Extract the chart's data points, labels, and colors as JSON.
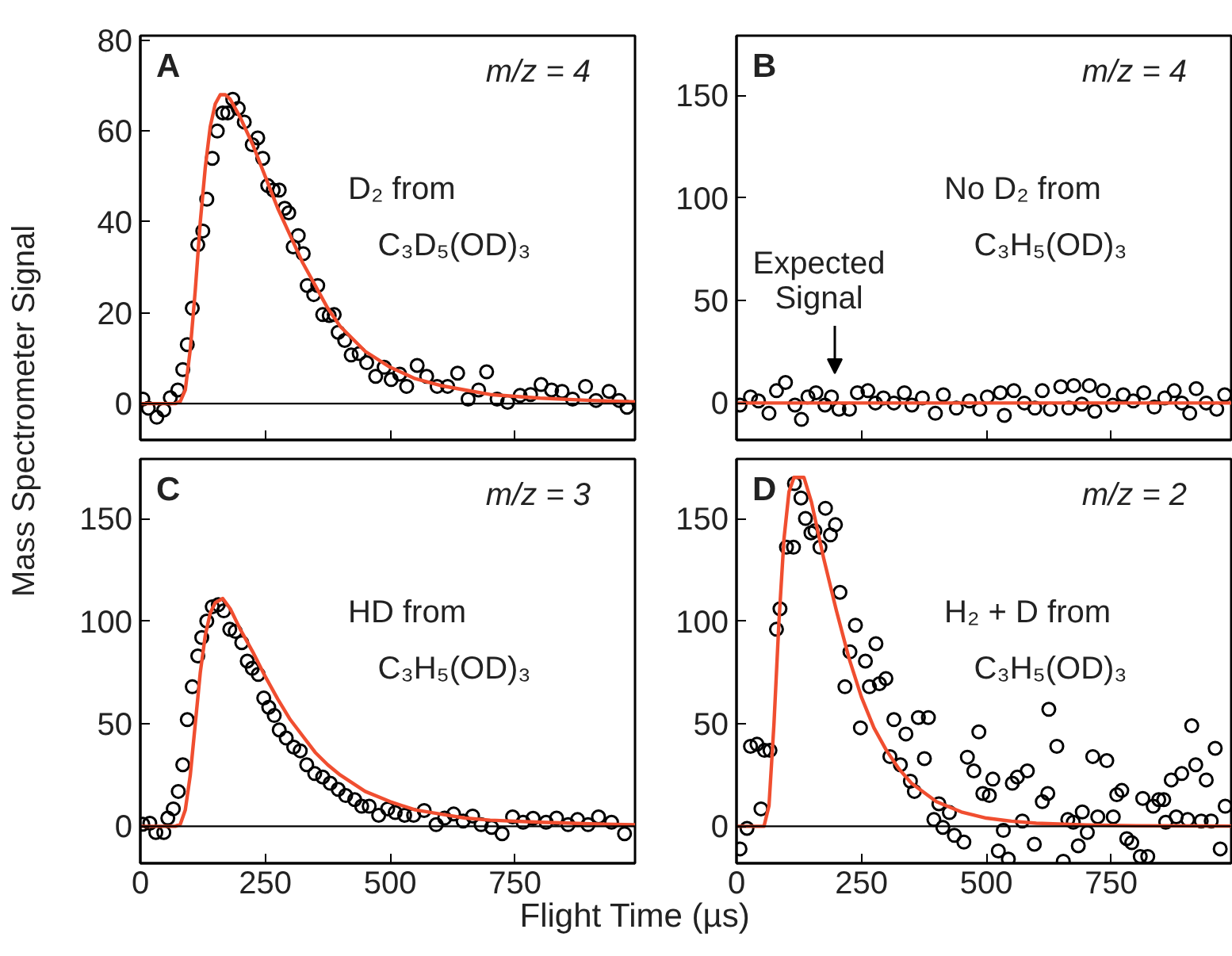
{
  "chart_data": [
    {
      "type": "scatter",
      "ylabel": "Mass Spectrometer Signal",
      "xlim": [
        0,
        990
      ],
      "ylim": [
        -8,
        81
      ],
      "xticks": [
        0,
        250,
        500,
        750
      ],
      "yticks": [
        0,
        20,
        40,
        60,
        80
      ],
      "tick_labels": "y",
      "marker": "circle",
      "annotations": [
        "A",
        "m/z = 4",
        "D₂ from",
        "C₃D₅(OD)₃"
      ],
      "ref_lines": [
        {
          "axis": "y",
          "value": 0,
          "color": "#000000"
        }
      ],
      "series": [
        {
          "color": "#000000",
          "x": [
            5,
            16,
            33,
            47,
            60,
            75,
            85,
            94,
            104,
            115,
            125,
            133,
            144,
            154,
            165,
            175,
            185,
            196,
            208,
            224,
            235,
            245,
            255,
            266,
            278,
            289,
            297,
            306,
            316,
            326,
            334,
            347,
            355,
            365,
            378,
            388,
            396,
            409,
            422,
            438,
            453,
            471,
            488,
            502,
            519,
            533,
            554,
            573,
            594,
            615,
            635,
            656,
            677,
            693,
            714,
            735,
            760,
            781,
            802,
            823,
            844,
            865,
            891,
            912,
            938,
            958,
            974
          ],
          "values": [
            1,
            -1,
            -3,
            -1.4,
            1.3,
            3,
            7.5,
            13,
            21,
            35,
            38,
            45,
            54,
            60,
            64,
            64,
            67,
            65,
            62,
            57,
            58.5,
            54,
            48,
            47,
            47,
            43,
            42,
            34.5,
            37,
            33,
            26,
            24,
            26,
            19.6,
            19.4,
            19.6,
            15.7,
            13.9,
            10.7,
            11,
            9,
            6,
            8,
            5.3,
            6.5,
            3.8,
            8.4,
            6,
            3.8,
            3.8,
            6.7,
            1,
            3,
            7,
            1,
            0.3,
            1.8,
            2,
            4.2,
            3,
            2.7,
            1,
            3.8,
            0.7,
            2.7,
            0.7,
            -0.8
          ]
        },
        {
          "type": "line",
          "marker": "none",
          "color": "#f04e30",
          "x": [
            0,
            70,
            80,
            90,
            100,
            110,
            120,
            130,
            140,
            150,
            160,
            170,
            180,
            200,
            225,
            250,
            275,
            300,
            325,
            350,
            375,
            400,
            450,
            500,
            550,
            600,
            650,
            700,
            800,
            900,
            990
          ],
          "values": [
            0,
            0,
            0.5,
            3,
            12,
            25,
            40,
            52,
            61,
            66,
            68,
            68,
            67,
            63,
            57,
            50,
            43,
            37,
            31,
            26,
            21,
            17,
            11.5,
            8,
            5.5,
            4,
            3,
            2,
            1.2,
            0.7,
            0.4
          ]
        }
      ]
    },
    {
      "type": "scatter",
      "xlim": [
        0,
        990
      ],
      "ylim": [
        -18,
        179
      ],
      "xticks": [
        0,
        250,
        500,
        750
      ],
      "yticks": [
        0,
        50,
        100,
        150
      ],
      "tick_labels": "y",
      "marker": "circle",
      "annotations": [
        "B",
        "m/z = 4",
        "No D₂ from",
        "C₃H₅(OD)₃",
        "Expected Signal"
      ],
      "series": [
        {
          "color": "#000000",
          "x": [
            7,
            28,
            44,
            65,
            80,
            98,
            117,
            130,
            143,
            159,
            177,
            190,
            205,
            226,
            242,
            263,
            278,
            294,
            315,
            336,
            351,
            372,
            398,
            414,
            440,
            466,
            487,
            502,
            528,
            536,
            555,
            576,
            597,
            612,
            628,
            649,
            665,
            675,
            691,
            706,
            717,
            734,
            753,
            774,
            794,
            815,
            836,
            857,
            876,
            891,
            907,
            920,
            940,
            961,
            977
          ],
          "values": [
            -1,
            3,
            1,
            -5,
            6,
            10,
            -1,
            -8,
            3,
            5,
            -1,
            3,
            -3,
            -3,
            5,
            6,
            0,
            2.5,
            0,
            5,
            -1,
            2.5,
            -5,
            4,
            -2.5,
            1,
            -3,
            3,
            5,
            -6,
            6,
            0,
            -2.5,
            6,
            -3,
            8,
            -2.5,
            8.5,
            -0.5,
            8.5,
            -4,
            6,
            -1,
            4,
            1,
            5,
            -2,
            2.5,
            6,
            0,
            -5,
            7,
            0,
            -3,
            4
          ]
        },
        {
          "type": "line",
          "marker": "none",
          "color": "#f04e30",
          "x": [
            0,
            990
          ],
          "values": [
            0,
            0
          ]
        }
      ]
    },
    {
      "type": "scatter",
      "xlabel": "Flight Time (µs)",
      "xlim": [
        0,
        990
      ],
      "ylim": [
        -18,
        179
      ],
      "xticks": [
        0,
        250,
        500,
        750
      ],
      "yticks": [
        0,
        50,
        100,
        150
      ],
      "marker": "circle",
      "annotations": [
        "C",
        "m/z = 3",
        "HD from",
        "C₃H₅(OD)₃"
      ],
      "ref_lines": [
        {
          "axis": "y",
          "value": 0,
          "color": "#000000"
        }
      ],
      "series": [
        {
          "color": "#000000",
          "x": [
            5,
            19,
            31,
            47,
            55,
            66,
            76,
            85,
            94,
            104,
            115,
            123,
            133,
            144,
            156,
            167,
            179,
            190,
            203,
            214,
            224,
            236,
            247,
            257,
            268,
            278,
            292,
            307,
            320,
            333,
            349,
            365,
            380,
            396,
            411,
            429,
            443,
            458,
            477,
            495,
            510,
            529,
            547,
            568,
            592,
            609,
            627,
            646,
            665,
            682,
            703,
            724,
            745,
            766,
            786,
            812,
            833,
            856,
            875,
            896,
            917,
            943,
            969
          ],
          "values": [
            1,
            1.5,
            -3,
            -3,
            4,
            8.5,
            17,
            30,
            52,
            68,
            83,
            92,
            100,
            107,
            108,
            105,
            96,
            95,
            89.5,
            80.5,
            77,
            74,
            62.5,
            58,
            54,
            47,
            43,
            38.6,
            36.8,
            30,
            25.7,
            24,
            21,
            18,
            15,
            13,
            9.8,
            9.8,
            5.4,
            8.5,
            6.7,
            5.4,
            5.4,
            7.7,
            0.8,
            4,
            6,
            2.6,
            5,
            0.8,
            -0.5,
            -3.6,
            4.6,
            2,
            3.9,
            2,
            4,
            0.8,
            3.3,
            0.8,
            4.6,
            2,
            -3.6
          ]
        },
        {
          "type": "line",
          "marker": "none",
          "color": "#f04e30",
          "x": [
            0,
            70,
            80,
            90,
            100,
            110,
            120,
            130,
            140,
            150,
            165,
            180,
            200,
            225,
            250,
            275,
            300,
            325,
            350,
            375,
            400,
            450,
            500,
            550,
            600,
            650,
            700,
            800,
            900,
            990
          ],
          "values": [
            0,
            0,
            1,
            8,
            25,
            50,
            75,
            93,
            104,
            109,
            111,
            106,
            96,
            85,
            73,
            62,
            52,
            44,
            36,
            30,
            25,
            17,
            12,
            8,
            6,
            4,
            3,
            2,
            1.2,
            0.8
          ]
        }
      ]
    },
    {
      "type": "scatter",
      "xlim": [
        0,
        990
      ],
      "ylim": [
        -18,
        179
      ],
      "xticks": [
        0,
        250,
        500,
        750
      ],
      "yticks": [
        0,
        50,
        100,
        150
      ],
      "marker": "circle",
      "annotations": [
        "D",
        "m/z = 2",
        "H₂ + D from",
        "C₃H₅(OD)₃"
      ],
      "ref_lines": [
        {
          "axis": "y",
          "value": 0,
          "color": "#000000"
        }
      ],
      "series": [
        {
          "color": "#000000",
          "x": [
            7,
            21,
            28,
            41,
            49,
            56,
            67,
            80,
            87,
            100,
            114,
            116,
            129,
            138,
            149,
            157,
            167,
            178,
            188,
            198,
            207,
            217,
            227,
            238,
            248,
            258,
            266,
            279,
            286,
            299,
            307,
            315,
            328,
            339,
            348,
            356,
            364,
            376,
            384,
            395,
            405,
            413,
            426,
            436,
            455,
            462,
            475,
            485,
            493,
            506,
            513,
            524,
            534,
            544,
            552,
            562,
            572,
            582,
            596,
            612,
            623,
            625,
            641,
            654,
            663,
            674,
            684,
            692,
            702,
            713,
            723,
            741,
            754,
            761,
            771,
            781,
            791,
            808,
            813,
            823,
            834,
            845,
            855,
            859,
            870,
            880,
            891,
            903,
            911,
            919,
            930,
            940,
            950,
            958,
            968,
            978
          ],
          "values": [
            -11,
            -1,
            39,
            40,
            8.5,
            37,
            37,
            96,
            106,
            136,
            136,
            167,
            160,
            150,
            143,
            144,
            136,
            155,
            142,
            147,
            114,
            68,
            85,
            98,
            48,
            80.5,
            68,
            89,
            69.5,
            72,
            34,
            52,
            30,
            45,
            22,
            17,
            53,
            33,
            53,
            3.3,
            11,
            -0.5,
            6.7,
            -4.4,
            -7.7,
            33.7,
            27,
            46,
            16,
            15,
            23,
            -12,
            -2,
            -16,
            21,
            24,
            2.6,
            27,
            -8.7,
            12,
            16,
            57,
            39,
            -17,
            3.3,
            2,
            -9.5,
            7,
            -3,
            34,
            4.6,
            32,
            4.6,
            15.4,
            17.5,
            -6,
            -8,
            -14.7,
            13.6,
            -14.7,
            9.8,
            13,
            13,
            2,
            22.6,
            4.6,
            25.7,
            3.3,
            49,
            30,
            2.6,
            22.6,
            2.6,
            38,
            -11,
            9.8
          ]
        },
        {
          "type": "line",
          "marker": "none",
          "color": "#f04e30",
          "x": [
            0,
            55,
            65,
            75,
            85,
            95,
            105,
            115,
            135,
            150,
            175,
            200,
            225,
            250,
            275,
            300,
            325,
            350,
            400,
            450,
            500,
            550,
            600,
            700,
            800,
            990
          ],
          "values": [
            0,
            0,
            10,
            50,
            100,
            140,
            163,
            170,
            170,
            158,
            130,
            105,
            82,
            63,
            48,
            37,
            28,
            21,
            12,
            7,
            4,
            2.5,
            1.5,
            0.7,
            0.3,
            0.1
          ]
        }
      ]
    }
  ]
}
